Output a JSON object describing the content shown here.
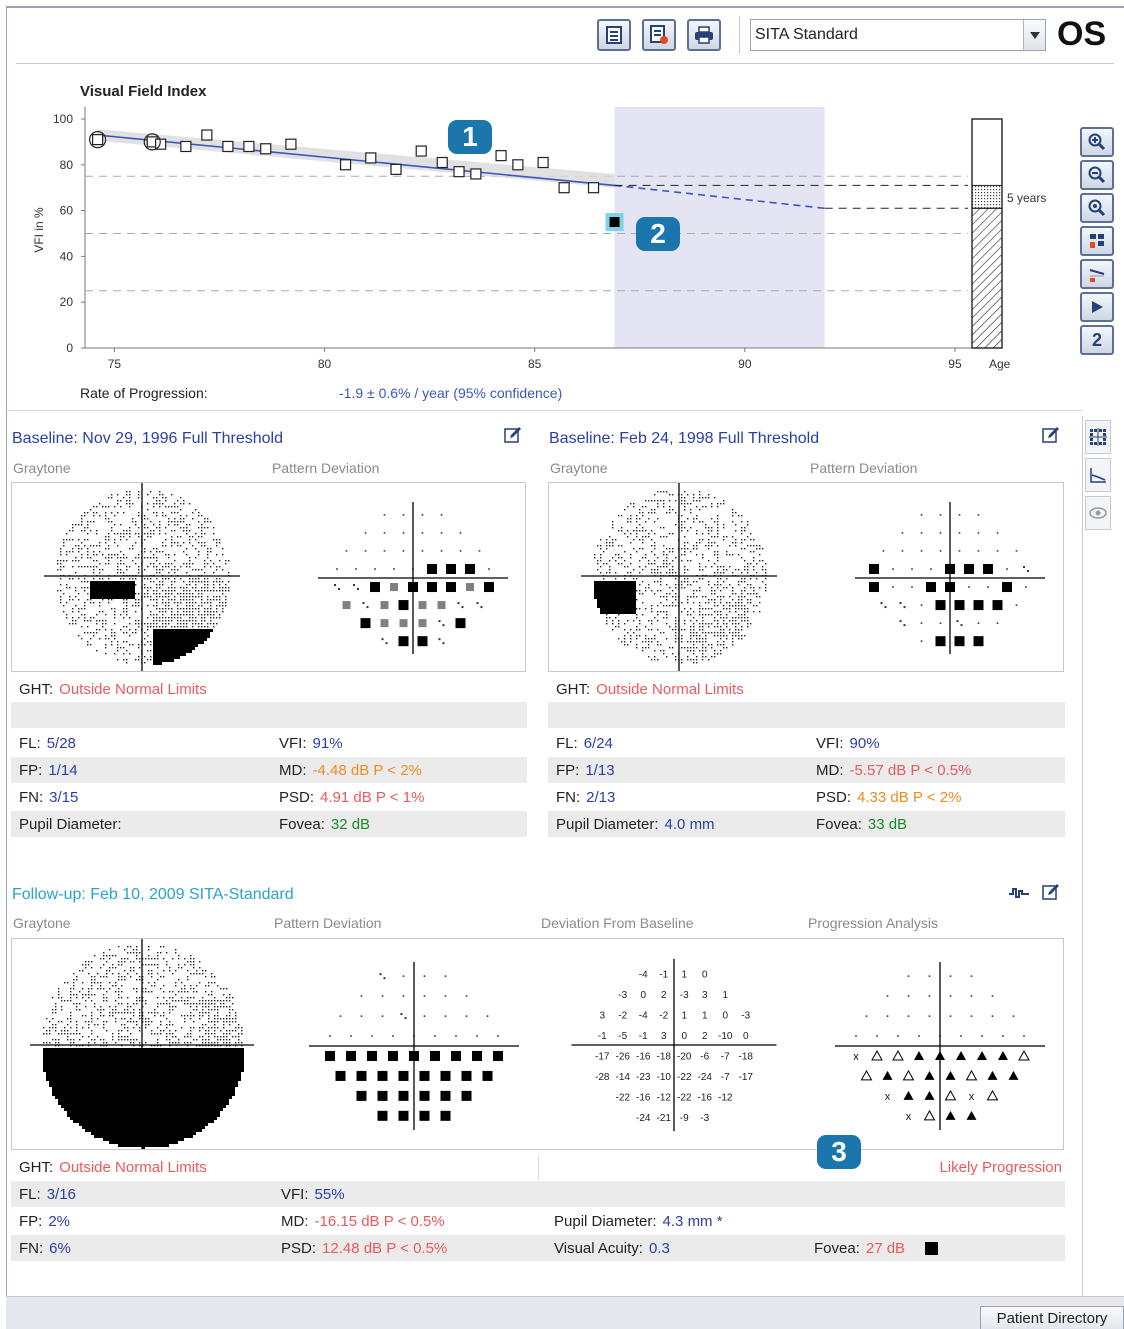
{
  "toolbar": {
    "strategy_value": "SITA Standard",
    "eye": "OS",
    "buttons": [
      "report-icon",
      "export-icon",
      "print-icon"
    ]
  },
  "vfi_chart": {
    "title": "Visual Field Index",
    "ylabel": "VFI in %",
    "xlabel": "Age",
    "y_ticks": [
      "100",
      "80",
      "60",
      "40",
      "20",
      "0"
    ],
    "x_ticks": [
      "75",
      "80",
      "85",
      "90",
      "95"
    ],
    "projection_label": "5 years",
    "rate_label": "Rate of Progression:",
    "rate_value": "-1.9 ± 0.6% / year (95% confidence)"
  },
  "chart_data": {
    "type": "scatter",
    "title": "Visual Field Index",
    "xlabel": "Age",
    "ylabel": "VFI in %",
    "xlim": [
      74.3,
      96.5
    ],
    "ylim": [
      0,
      100
    ],
    "points_x": [
      74.6,
      75.9,
      76.1,
      76.7,
      77.2,
      77.7,
      78.2,
      78.6,
      79.2,
      80.5,
      81.1,
      81.7,
      82.3,
      82.8,
      83.2,
      83.6,
      84.2,
      84.6,
      85.2,
      85.7,
      86.4
    ],
    "points_y": [
      91,
      90,
      89,
      88,
      93,
      88,
      88,
      87,
      89,
      80,
      83,
      78,
      86,
      81,
      77,
      76,
      84,
      80,
      81,
      70,
      70
    ],
    "latest_point": {
      "x": 86.9,
      "y": 55
    },
    "trend": {
      "x": [
        74.6,
        86.9
      ],
      "y": [
        93,
        71
      ]
    },
    "projection": {
      "x": [
        86.9,
        91.9
      ],
      "y": [
        71,
        61
      ]
    },
    "projection_window_x": [
      86.9,
      91.9
    ],
    "ref_lines_y": [
      75,
      50,
      25
    ],
    "age_bar": {
      "value": 61,
      "projected": 71
    }
  },
  "zoom_buttons": [
    "zoom-in-icon",
    "zoom-out-icon",
    "zoom-fit-icon",
    "select-exam-icon",
    "trend-icon",
    "play-icon",
    "2"
  ],
  "side_tools": [
    "grid-icon",
    "graph-icon",
    "eye-icon"
  ],
  "baseline1": {
    "title": "Baseline: Nov 29, 1996 Full Threshold",
    "graytone": "Graytone",
    "pattern": "Pattern Deviation",
    "ght_label": "GHT:",
    "ght_value": "Outside Normal Limits",
    "fl_label": "FL:",
    "fl": "5/28",
    "fp_label": "FP:",
    "fp": "1/14",
    "fn_label": "FN:",
    "fn": "3/15",
    "pupil_label": "Pupil Diameter:",
    "pupil": "",
    "vfi_label": "VFI:",
    "vfi": "91%",
    "md_label": "MD:",
    "md": "-4.48 dB P < 2%",
    "psd_label": "PSD:",
    "psd": "4.91 dB P < 1%",
    "fovea_label": "Fovea:",
    "fovea": "32 dB"
  },
  "baseline2": {
    "title": "Baseline: Feb 24, 1998 Full Threshold",
    "graytone": "Graytone",
    "pattern": "Pattern Deviation",
    "ght_label": "GHT:",
    "ght_value": "Outside Normal Limits",
    "fl_label": "FL:",
    "fl": "6/24",
    "fp_label": "FP:",
    "fp": "1/13",
    "fn_label": "FN:",
    "fn": "2/13",
    "pupil_label": "Pupil Diameter:",
    "pupil": "4.0 mm",
    "vfi_label": "VFI:",
    "vfi": "90%",
    "md_label": "MD:",
    "md": "-5.57 dB P < 0.5%",
    "psd_label": "PSD:",
    "psd": "4.33 dB P < 2%",
    "fovea_label": "Fovea:",
    "fovea": "33 dB"
  },
  "followup": {
    "title": "Follow-up: Feb 10, 2009 SITA-Standard",
    "graytone": "Graytone",
    "pattern": "Pattern Deviation",
    "deviation": "Deviation From Baseline",
    "progression": "Progression Analysis",
    "ght_label": "GHT:",
    "ght_value": "Outside Normal Limits",
    "progression_result": "Likely Progression",
    "fl_label": "FL:",
    "fl": "3/16",
    "fp_label": "FP:",
    "fp": "2%",
    "fn_label": "FN:",
    "fn": "6%",
    "vfi_label": "VFI:",
    "vfi": "55%",
    "md_label": "MD:",
    "md": "-16.15 dB P < 0.5%",
    "psd_label": "PSD:",
    "psd": "12.48 dB P < 0.5%",
    "pupil_label": "Pupil Diameter:",
    "pupil": "4.3 mm *",
    "acuity_label": "Visual Acuity:",
    "acuity": "0.3",
    "fovea_label": "Fovea:",
    "fovea": "27 dB",
    "deviation_grid": [
      [
        "-4",
        "-1",
        "1",
        "0"
      ],
      [
        "-3",
        "0",
        "2",
        "-3",
        "3",
        "1"
      ],
      [
        "3",
        "-2",
        "-4",
        "-2",
        "1",
        "1",
        "0",
        "-3"
      ],
      [
        "-1",
        "-5",
        "-1",
        "3",
        "0",
        "2",
        "-10",
        "0"
      ],
      [
        "-17",
        "-26",
        "-16",
        "-18",
        "-20",
        "-6",
        "-7",
        "-18"
      ],
      [
        "-28",
        "-14",
        "-23",
        "-10",
        "-22",
        "-24",
        "-7",
        "-17"
      ],
      [
        "-22",
        "-16",
        "-12",
        "-22",
        "-16",
        "-12"
      ],
      [
        "-24",
        "-21",
        "-9",
        "-3"
      ]
    ]
  },
  "badges": [
    "1",
    "2",
    "3"
  ],
  "footer": {
    "patient_directory": "Patient Directory"
  }
}
